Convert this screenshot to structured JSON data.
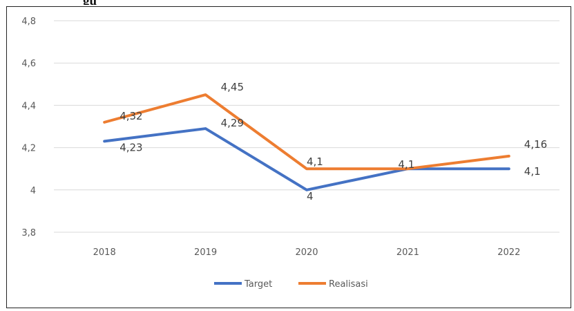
{
  "caption_fragment": "gu",
  "chart_data": {
    "type": "line",
    "categories": [
      "2018",
      "2019",
      "2020",
      "2021",
      "2022"
    ],
    "series": [
      {
        "name": "Target",
        "color": "#4472C4",
        "values": [
          4.23,
          4.29,
          4.0,
          4.1,
          4.1
        ],
        "labels": [
          "4,23",
          "4,29",
          "4",
          "4,1",
          "4,1"
        ]
      },
      {
        "name": "Realisasi",
        "color": "#ED7D31",
        "values": [
          4.32,
          4.45,
          4.1,
          4.1,
          4.16
        ],
        "labels": [
          "4,32",
          "4,45",
          "4,1",
          "4,1",
          "4,16"
        ]
      }
    ],
    "yticks": [
      3.8,
      4.0,
      4.2,
      4.4,
      4.6,
      4.8
    ],
    "ytick_labels": [
      "3,8",
      "4",
      "4,2",
      "4,4",
      "4,6",
      "4,8"
    ],
    "ylim": [
      3.8,
      4.8
    ],
    "grid": true,
    "legend": "bottom-center"
  }
}
